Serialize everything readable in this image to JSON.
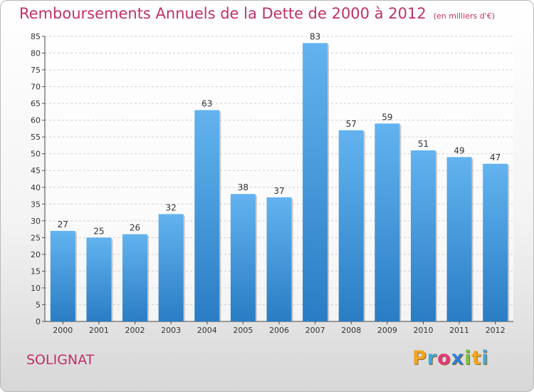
{
  "chart_data": {
    "type": "bar",
    "title": "Remboursements Annuels de la Dette de 2000 à 2012",
    "subtitle": "(en milliers d'€)",
    "categories": [
      "2000",
      "2001",
      "2002",
      "2003",
      "2004",
      "2005",
      "2006",
      "2007",
      "2008",
      "2009",
      "2010",
      "2011",
      "2012"
    ],
    "values": [
      27,
      25,
      26,
      32,
      63,
      38,
      37,
      83,
      57,
      59,
      51,
      49,
      47
    ],
    "ylim": [
      0,
      85
    ],
    "yticks": [
      0,
      5,
      10,
      15,
      20,
      25,
      30,
      35,
      40,
      45,
      50,
      55,
      60,
      65,
      70,
      75,
      80,
      85
    ],
    "grid": true,
    "bar_color": "#3a8fd6"
  },
  "commune": "SOLIGNAT",
  "logo": {
    "letters": [
      "P",
      "r",
      "o",
      "x",
      "i",
      "t",
      "i"
    ],
    "colors": [
      "#f2a623",
      "#3fa6dc",
      "#e23a7a",
      "#2f7fd1",
      "#7cc242",
      "#f2a623",
      "#3fa6dc"
    ]
  }
}
